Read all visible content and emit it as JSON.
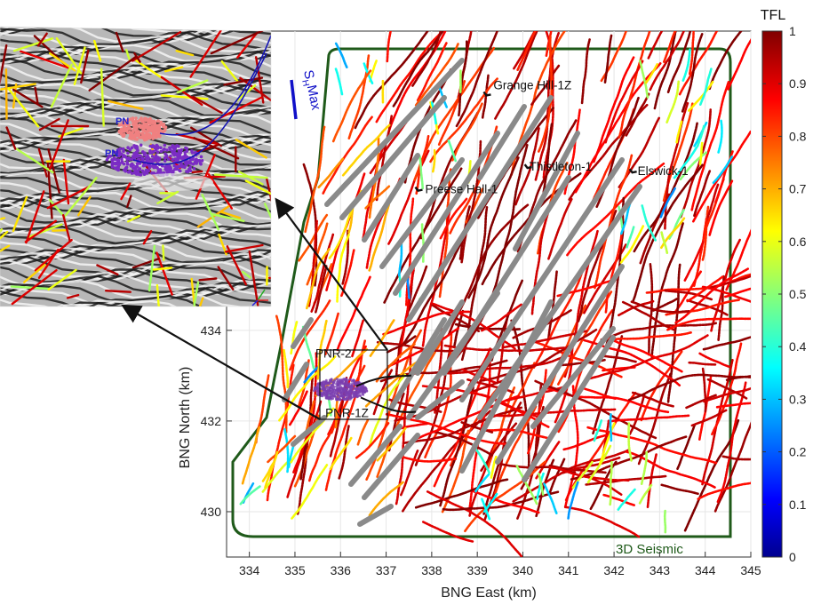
{
  "chart_data": {
    "type": "scatter",
    "xlabel": "BNG East (km)",
    "ylabel": "BNG North (km)",
    "xlim": [
      333.5,
      345
    ],
    "ylim": [
      429,
      440.6
    ],
    "xticks": [
      334,
      335,
      336,
      337,
      338,
      339,
      340,
      341,
      342,
      343,
      344,
      345
    ],
    "yticks": [
      430,
      432,
      434
    ],
    "grid": true,
    "colorbar": {
      "title": "TFL",
      "range": [
        0,
        1
      ],
      "ticks": [
        "0",
        "0.1",
        "0.2",
        "0.3",
        "0.4",
        "0.5",
        "0.6",
        "0.7",
        "0.8",
        "0.9",
        "1"
      ],
      "colormap": "jet"
    },
    "survey_label": "3D Seismic",
    "survey_color": "#1f5a1a",
    "shmax_label": "S",
    "shmax_sub": "H",
    "shmax_suffix": "Max",
    "shmax_color": "#1010c8",
    "wells": [
      {
        "name": "Grange Hill-1Z",
        "x": 339.2,
        "y": 439.2
      },
      {
        "name": "Thistleton-1",
        "x": 340.1,
        "y": 437.6
      },
      {
        "name": "Elswick-1",
        "x": 342.4,
        "y": 437.5
      },
      {
        "name": "Preese Hall-1",
        "x": 337.7,
        "y": 437.1
      },
      {
        "name": "PNR-2",
        "x": 335.8,
        "y": 433.2
      },
      {
        "name": "PNR-1Z",
        "x": 335.9,
        "y": 432.4
      }
    ],
    "microseismic_color": "#7a3fb0",
    "inset_labels": [
      "PN",
      "PN"
    ],
    "inset_colors": {
      "upper_cloud": "#f08080",
      "lower_cloud": "#7b2cc4",
      "well_trace": "#1414b4"
    }
  }
}
